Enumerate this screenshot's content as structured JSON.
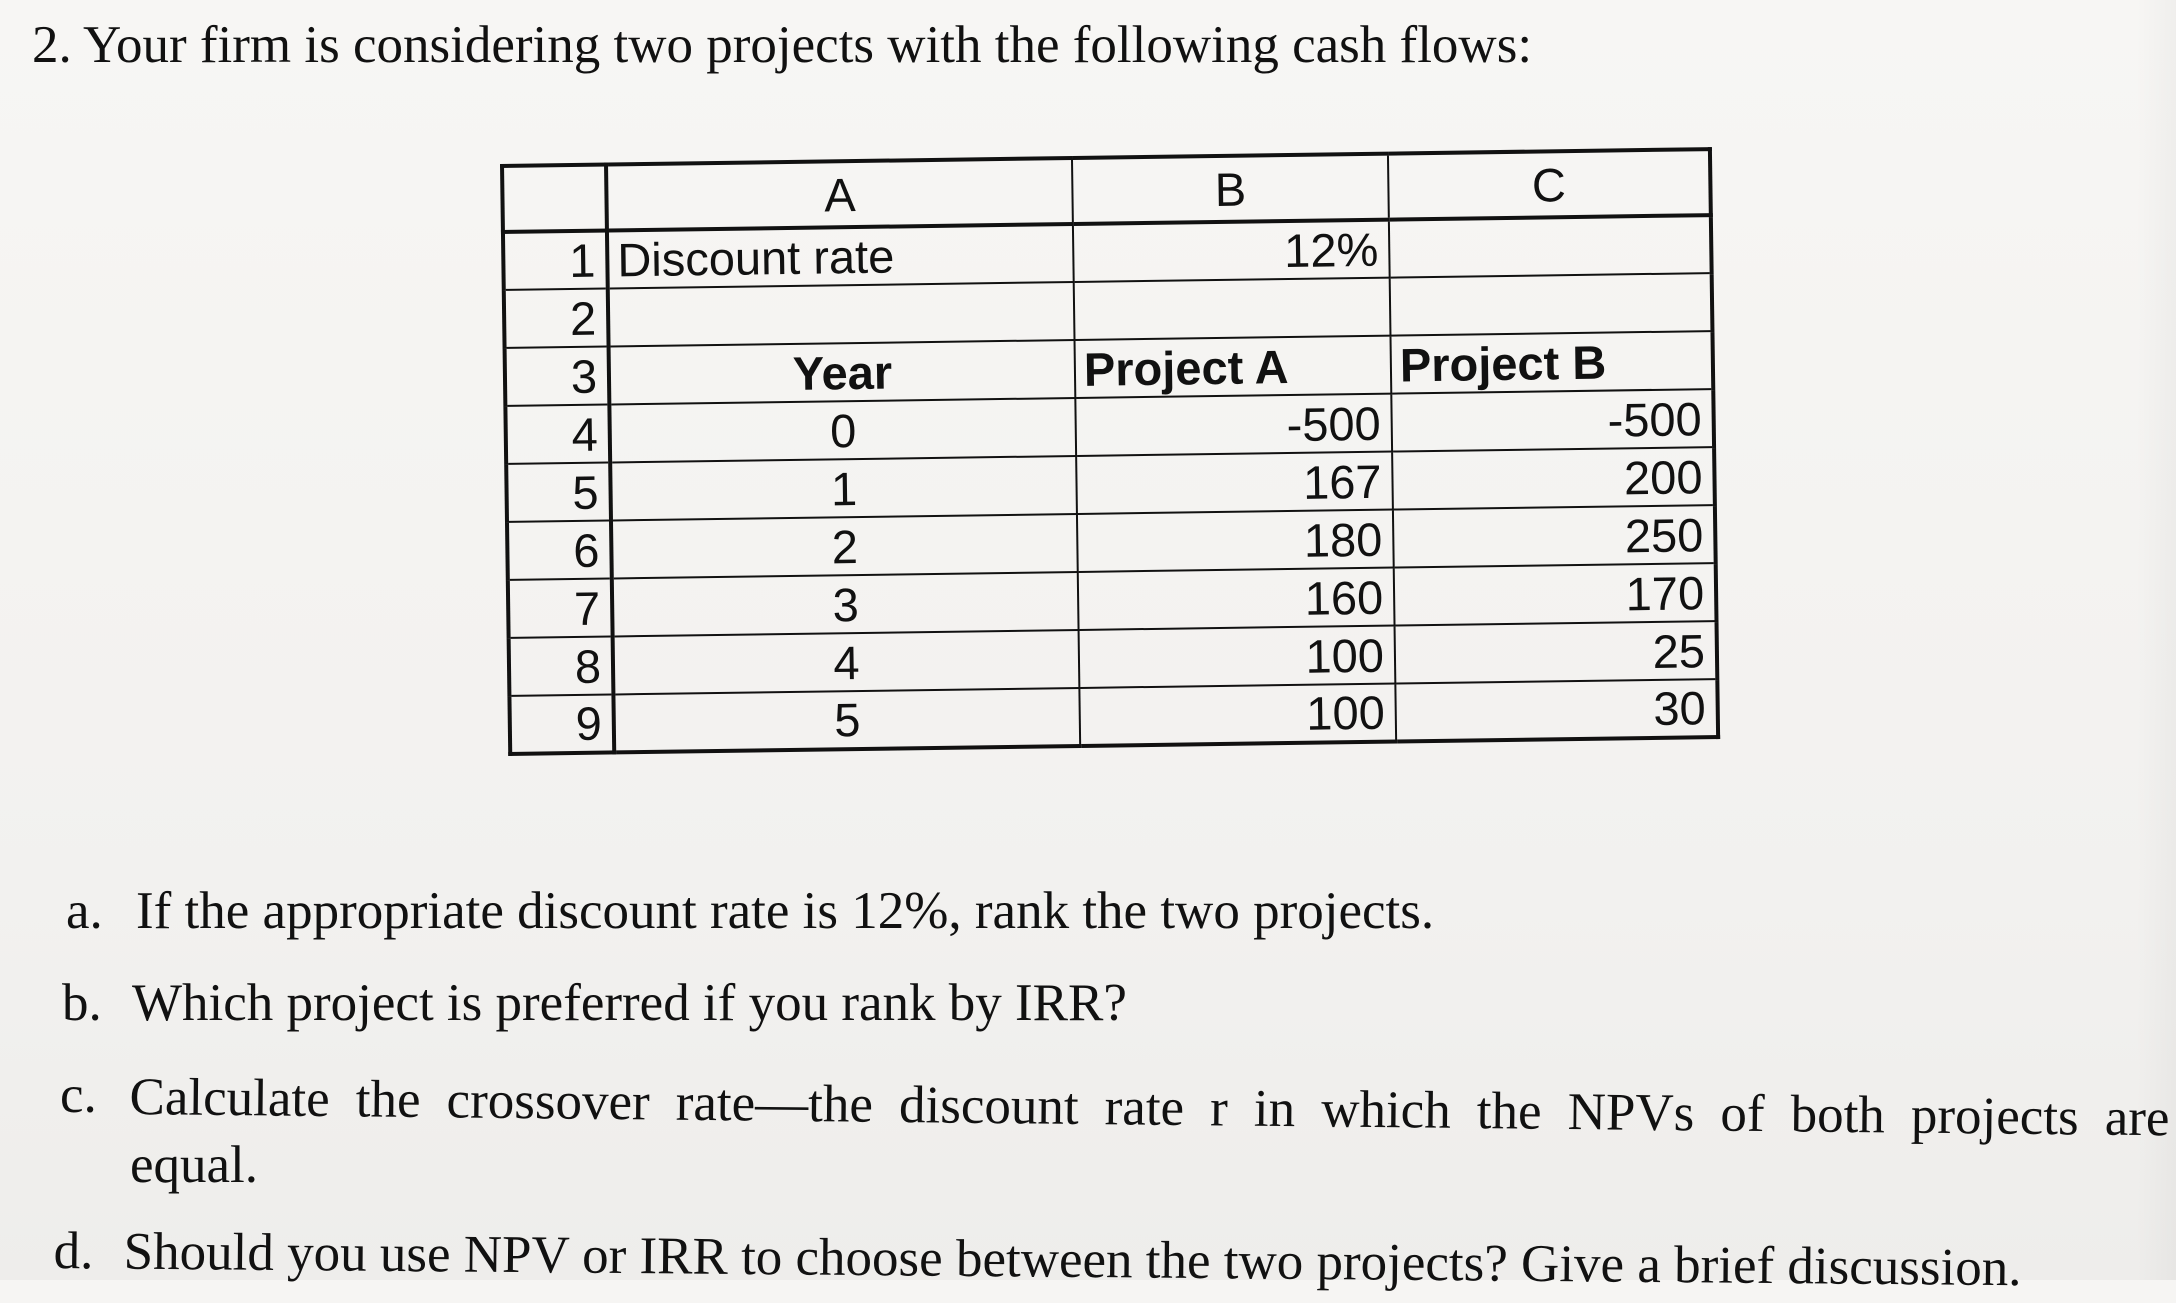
{
  "intro": "2. Your firm is considering two projects with the following cash flows:",
  "sheet": {
    "column_headers": [
      "A",
      "B",
      "C"
    ],
    "rows": [
      {
        "num": "1",
        "a": "Discount rate",
        "b": "12%",
        "c": ""
      },
      {
        "num": "2",
        "a": "",
        "b": "",
        "c": ""
      },
      {
        "num": "3",
        "a": "Year",
        "b": "Project A",
        "c": "Project B"
      },
      {
        "num": "4",
        "a": "0",
        "b": "-500",
        "c": "-500"
      },
      {
        "num": "5",
        "a": "1",
        "b": "167",
        "c": "200"
      },
      {
        "num": "6",
        "a": "2",
        "b": "180",
        "c": "250"
      },
      {
        "num": "7",
        "a": "3",
        "b": "160",
        "c": "170"
      },
      {
        "num": "8",
        "a": "4",
        "b": "100",
        "c": "25"
      },
      {
        "num": "9",
        "a": "5",
        "b": "100",
        "c": "30"
      }
    ]
  },
  "questions": [
    {
      "letter": "a.",
      "text": "If the appropriate discount rate is 12%, rank the two projects."
    },
    {
      "letter": "b.",
      "text": "Which project is preferred if you rank by IRR?"
    },
    {
      "letter": "c.",
      "text_line1": "Calculate the crossover rate—the discount rate r in which the NPVs of both projects are",
      "text_line2": "equal."
    },
    {
      "letter": "d.",
      "text": "Should you use NPV or IRR to choose between the two projects? Give a brief discussion."
    }
  ]
}
